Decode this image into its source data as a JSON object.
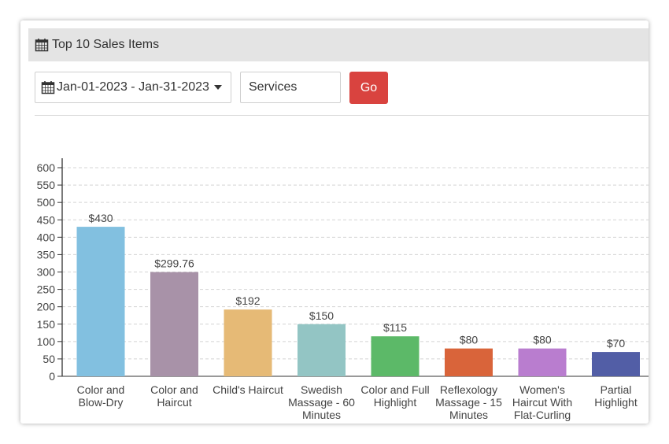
{
  "panel": {
    "title": "Top 10 Sales Items",
    "icon": "calendar-icon"
  },
  "filters": {
    "date_range": "Jan-01-2023 - Jan-31-2023",
    "category": "Services",
    "go_label": "Go",
    "go_color": "#d9433f"
  },
  "chart_data": {
    "type": "bar",
    "title": "",
    "xlabel": "",
    "ylabel": "",
    "ylim": [
      0,
      600
    ],
    "yticks": [
      0,
      50,
      100,
      150,
      200,
      250,
      300,
      350,
      400,
      450,
      500,
      550,
      600
    ],
    "grid": true,
    "categories": [
      [
        "Color and",
        "Blow-Dry"
      ],
      [
        "Color and",
        "Haircut"
      ],
      [
        "Child's Haircut"
      ],
      [
        "Swedish",
        "Massage - 60",
        "Minutes"
      ],
      [
        "Color and Full",
        "Highlight"
      ],
      [
        "Reflexology",
        "Massage - 15",
        "Minutes"
      ],
      [
        "Women's",
        "Haircut With",
        "Flat-Curling"
      ],
      [
        "Partial",
        "Highlight"
      ]
    ],
    "values": [
      430,
      299.76,
      192,
      150,
      115,
      80,
      80,
      70
    ],
    "data_labels": [
      "$430",
      "$299.76",
      "$192",
      "$150",
      "$115",
      "$80",
      "$80",
      "$70"
    ],
    "colors": [
      "#82c0e0",
      "#a892a8",
      "#e6ba76",
      "#93c5c4",
      "#5cb968",
      "#d9643a",
      "#b97dcf",
      "#525ea6"
    ]
  }
}
